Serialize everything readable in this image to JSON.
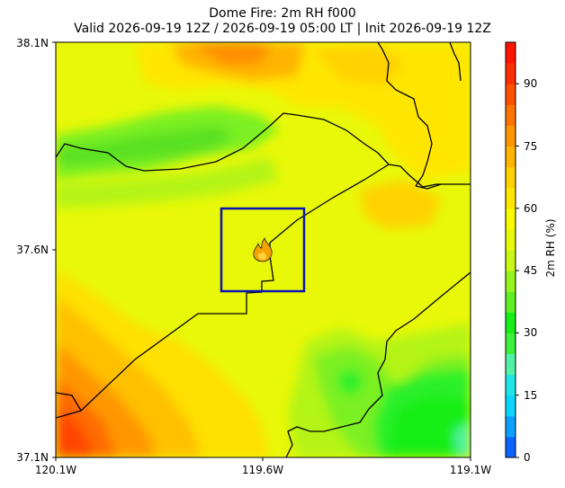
{
  "title": {
    "line1": "Dome Fire: 2m RH f000",
    "line2": "Valid 2026-09-19 12Z / 2026-09-19 05:00 LT | Init 2026-09-19 12Z"
  },
  "map": {
    "lat_labels": [
      "38.1N",
      "37.6N",
      "37.1N"
    ],
    "lon_labels": [
      "120.1W",
      "119.6W",
      "119.1W"
    ],
    "lat_range": [
      37.1,
      38.1
    ],
    "lon_range": [
      -120.1,
      -119.1
    ],
    "fire_icon": "flame-icon",
    "box_color": "#0a14b4",
    "boundary_color": "#000000"
  },
  "colorbar": {
    "label": "2m RH (%)",
    "tick_labels": [
      "0",
      "15",
      "30",
      "45",
      "60",
      "75",
      "90"
    ],
    "range": [
      0,
      100
    ],
    "colors": [
      "#0a64ff",
      "#0aa0ff",
      "#0ad7ff",
      "#1ee6e6",
      "#52f2a6",
      "#3cf03c",
      "#16f016",
      "#5ef022",
      "#96f51e",
      "#c8f814",
      "#e6fa0a",
      "#fafa00",
      "#ffe600",
      "#ffd200",
      "#ffb400",
      "#ff9600",
      "#ff7300",
      "#ff5000",
      "#ff2d00",
      "#ff1400"
    ]
  }
}
